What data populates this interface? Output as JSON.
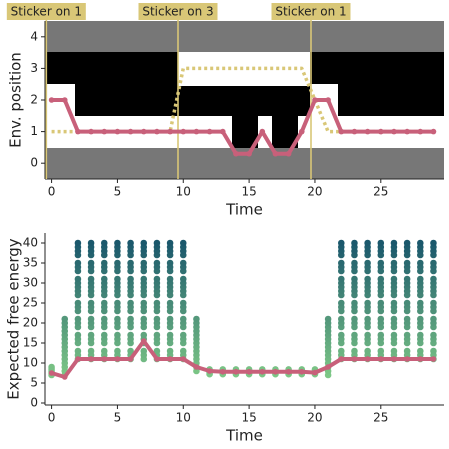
{
  "chart_data": [
    {
      "type": "line",
      "ylabel": "Env. position",
      "xlabel": "Time",
      "xlim": [
        -0.5,
        29.8
      ],
      "ylim": [
        -0.5,
        4.5
      ],
      "xticks": [
        0,
        5,
        10,
        15,
        20,
        25
      ],
      "yticks": [
        0,
        1,
        2,
        3,
        4
      ],
      "x": [
        0,
        1,
        2,
        3,
        4,
        5,
        6,
        7,
        8,
        9,
        10,
        11,
        12,
        13,
        14,
        15,
        16,
        17,
        18,
        19,
        20,
        21,
        22,
        23,
        24,
        25,
        26,
        27,
        28,
        29
      ],
      "series": [
        {
          "color": "#d9c777",
          "style": "dotted",
          "values": [
            1,
            1,
            1,
            1,
            1,
            1,
            1,
            1,
            1,
            1,
            3,
            3,
            3,
            3,
            3,
            3,
            3,
            3,
            3,
            3,
            2,
            1,
            1,
            1,
            1,
            1,
            1,
            1,
            1,
            1
          ]
        },
        {
          "color": "#c8607a",
          "style": "solid",
          "values": [
            2,
            2,
            1,
            1,
            1,
            1,
            1,
            1,
            1,
            1,
            1,
            1,
            1,
            1,
            0.3,
            0.3,
            1,
            0.3,
            0.3,
            1,
            2,
            2,
            1,
            1,
            1,
            1,
            1,
            1,
            1,
            1
          ]
        }
      ],
      "events": [
        {
          "x": -0.4,
          "label": "Sticker on 1",
          "color": "#d9c777"
        },
        {
          "x": 9.6,
          "label": "Sticker on 3",
          "color": "#d9c777"
        },
        {
          "x": 19.7,
          "label": "Sticker on 1",
          "color": "#d9c777"
        }
      ]
    },
    {
      "type": "scatter",
      "ylabel": "Expected free energy",
      "xlabel": "Time",
      "xlim": [
        -0.5,
        29.8
      ],
      "ylim": [
        -0.5,
        42.5
      ],
      "xticks": [
        0,
        5,
        10,
        15,
        20,
        25
      ],
      "yticks": [
        0,
        5,
        10,
        15,
        20,
        25,
        30,
        35,
        40
      ],
      "colormap": [
        "#93e08c",
        "#14506a"
      ],
      "points": [
        {
          "x": 0,
          "values": [
            7,
            7.5,
            8,
            8.5,
            9
          ]
        },
        {
          "x": 1,
          "values": [
            7,
            8,
            9,
            10,
            11,
            12,
            13,
            14,
            15,
            16,
            17,
            18,
            19,
            20,
            21
          ]
        },
        {
          "x": 2,
          "values": [
            11,
            12,
            13,
            15,
            16,
            17,
            19,
            20,
            21,
            23,
            24,
            25,
            27,
            28,
            29,
            30,
            31,
            33,
            34,
            35,
            37,
            38,
            39,
            40
          ]
        },
        {
          "x": 3,
          "values": [
            11,
            12,
            13,
            15,
            16,
            17,
            19,
            20,
            21,
            23,
            24,
            25,
            27,
            28,
            29,
            30,
            31,
            33,
            34,
            35,
            37,
            38,
            39,
            40
          ]
        },
        {
          "x": 4,
          "values": [
            11,
            12,
            13,
            15,
            16,
            17,
            19,
            20,
            21,
            23,
            24,
            25,
            27,
            28,
            29,
            30,
            31,
            33,
            34,
            35,
            37,
            38,
            39,
            40
          ]
        },
        {
          "x": 5,
          "values": [
            11,
            12,
            13,
            15,
            16,
            17,
            19,
            20,
            21,
            23,
            24,
            25,
            27,
            28,
            29,
            30,
            31,
            33,
            34,
            35,
            37,
            38,
            39,
            40
          ]
        },
        {
          "x": 6,
          "values": [
            11,
            12,
            13,
            15,
            16,
            17,
            19,
            20,
            21,
            23,
            24,
            25,
            27,
            28,
            29,
            30,
            31,
            33,
            34,
            35,
            37,
            38,
            39,
            40
          ]
        },
        {
          "x": 7,
          "values": [
            11,
            12,
            13,
            15,
            16,
            17,
            19,
            20,
            21,
            23,
            24,
            25,
            27,
            28,
            29,
            30,
            31,
            33,
            34,
            35,
            37,
            38,
            39,
            40
          ]
        },
        {
          "x": 8,
          "values": [
            11,
            12,
            13,
            15,
            16,
            17,
            19,
            20,
            21,
            23,
            24,
            25,
            27,
            28,
            29,
            30,
            31,
            33,
            34,
            35,
            37,
            38,
            39,
            40
          ]
        },
        {
          "x": 9,
          "values": [
            11,
            12,
            13,
            15,
            16,
            17,
            19,
            20,
            21,
            23,
            24,
            25,
            27,
            28,
            29,
            30,
            31,
            33,
            34,
            35,
            37,
            38,
            39,
            40
          ]
        },
        {
          "x": 10,
          "values": [
            11,
            12,
            13,
            15,
            16,
            17,
            19,
            20,
            21,
            23,
            24,
            25,
            27,
            28,
            29,
            30,
            31,
            33,
            34,
            35,
            37,
            38,
            39,
            40
          ]
        },
        {
          "x": 11,
          "values": [
            8,
            9,
            10,
            11,
            12,
            13,
            14,
            15,
            16,
            17,
            18,
            19,
            20,
            21
          ]
        },
        {
          "x": 12,
          "values": [
            7.2,
            7.6,
            8,
            8.4
          ]
        },
        {
          "x": 13,
          "values": [
            7.2,
            7.6,
            8,
            8.4
          ]
        },
        {
          "x": 14,
          "values": [
            7.2,
            7.6,
            8,
            8.4
          ]
        },
        {
          "x": 15,
          "values": [
            7.2,
            7.6,
            8,
            8.4
          ]
        },
        {
          "x": 16,
          "values": [
            7.2,
            7.6,
            8,
            8.4
          ]
        },
        {
          "x": 17,
          "values": [
            7.2,
            7.6,
            8,
            8.4
          ]
        },
        {
          "x": 18,
          "values": [
            7.2,
            7.6,
            8,
            8.4
          ]
        },
        {
          "x": 19,
          "values": [
            7.2,
            7.6,
            8,
            8.4
          ]
        },
        {
          "x": 20,
          "values": [
            7.2,
            7.6,
            8,
            8.4
          ]
        },
        {
          "x": 21,
          "values": [
            7,
            8,
            9,
            10,
            11,
            12,
            13,
            14,
            15,
            16,
            17,
            18,
            19,
            20,
            21
          ]
        },
        {
          "x": 22,
          "values": [
            11,
            12,
            13,
            15,
            16,
            17,
            19,
            20,
            21,
            23,
            24,
            25,
            27,
            28,
            29,
            30,
            31,
            33,
            34,
            35,
            37,
            38,
            39,
            40
          ]
        },
        {
          "x": 23,
          "values": [
            11,
            12,
            13,
            15,
            16,
            17,
            19,
            20,
            21,
            23,
            24,
            25,
            27,
            28,
            29,
            30,
            31,
            33,
            34,
            35,
            37,
            38,
            39,
            40
          ]
        },
        {
          "x": 24,
          "values": [
            11,
            12,
            13,
            15,
            16,
            17,
            19,
            20,
            21,
            23,
            24,
            25,
            27,
            28,
            29,
            30,
            31,
            33,
            34,
            35,
            37,
            38,
            39,
            40
          ]
        },
        {
          "x": 25,
          "values": [
            11,
            12,
            13,
            15,
            16,
            17,
            19,
            20,
            21,
            23,
            24,
            25,
            27,
            28,
            29,
            30,
            31,
            33,
            34,
            35,
            37,
            38,
            39,
            40
          ]
        },
        {
          "x": 26,
          "values": [
            11,
            12,
            13,
            15,
            16,
            17,
            19,
            20,
            21,
            23,
            24,
            25,
            27,
            28,
            29,
            30,
            31,
            33,
            34,
            35,
            37,
            38,
            39,
            40
          ]
        },
        {
          "x": 27,
          "values": [
            11,
            12,
            13,
            15,
            16,
            17,
            19,
            20,
            21,
            23,
            24,
            25,
            27,
            28,
            29,
            30,
            31,
            33,
            34,
            35,
            37,
            38,
            39,
            40
          ]
        },
        {
          "x": 28,
          "values": [
            11,
            12,
            13,
            15,
            16,
            17,
            19,
            20,
            21,
            23,
            24,
            25,
            27,
            28,
            29,
            30,
            31,
            33,
            34,
            35,
            37,
            38,
            39,
            40
          ]
        },
        {
          "x": 29,
          "values": [
            11,
            12,
            13,
            15,
            16,
            17,
            19,
            20,
            21,
            23,
            24,
            25,
            27,
            28,
            29,
            30,
            31,
            33,
            34,
            35,
            37,
            38,
            39,
            40
          ]
        }
      ],
      "x": [
        0,
        1,
        2,
        3,
        4,
        5,
        6,
        7,
        8,
        9,
        10,
        11,
        12,
        13,
        14,
        15,
        16,
        17,
        18,
        19,
        20,
        21,
        22,
        23,
        24,
        25,
        26,
        27,
        28,
        29
      ],
      "series": [
        {
          "color": "#c8607a",
          "style": "solid",
          "values": [
            7.5,
            6.5,
            11,
            11,
            11,
            11,
            11,
            15.5,
            11,
            11,
            11,
            9,
            8,
            7.8,
            7.8,
            7.8,
            7.8,
            7.8,
            7.8,
            7.8,
            7.6,
            9,
            11,
            11,
            11,
            11,
            11,
            11,
            11,
            11
          ]
        }
      ]
    }
  ]
}
